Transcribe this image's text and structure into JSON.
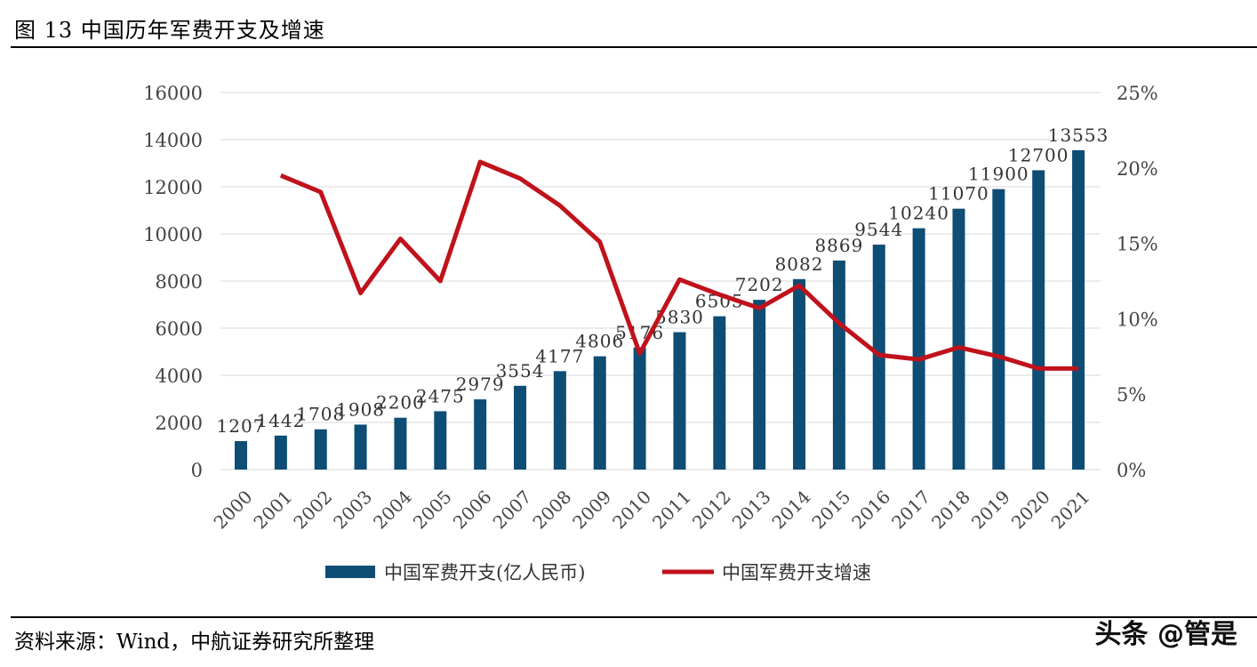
{
  "title": "图 13 中国历年军费开支及增速",
  "source": "资料来源：Wind，中航证券研究所整理",
  "watermark": "头条 @管是",
  "chart_data": {
    "type": "bar+line",
    "categories": [
      "2000",
      "2001",
      "2002",
      "2003",
      "2004",
      "2005",
      "2006",
      "2007",
      "2008",
      "2009",
      "2010",
      "2011",
      "2012",
      "2013",
      "2014",
      "2015",
      "2016",
      "2017",
      "2018",
      "2019",
      "2020",
      "2021"
    ],
    "series": [
      {
        "name": "中国军费开支(亿人民币)",
        "type": "bar",
        "axis": "left",
        "color": "#0e4d74",
        "values": [
          1207,
          1442,
          1708,
          1908,
          2200,
          2475,
          2979,
          3554,
          4177,
          4806,
          5176,
          5830,
          6505,
          7202,
          8082,
          8869,
          9544,
          10240,
          11070,
          11900,
          12700,
          13553
        ]
      },
      {
        "name": "中国军费开支增速",
        "type": "line",
        "axis": "right",
        "color": "#c0121c",
        "values": [
          null,
          19.5,
          18.4,
          11.7,
          15.3,
          12.5,
          20.4,
          19.3,
          17.5,
          15.1,
          7.7,
          12.6,
          11.6,
          10.7,
          12.2,
          9.7,
          7.6,
          7.3,
          8.1,
          7.5,
          6.7,
          6.7
        ]
      }
    ],
    "left_axis": {
      "ylim": [
        0,
        16000
      ],
      "ticks": [
        "0",
        "2000",
        "4000",
        "6000",
        "8000",
        "10000",
        "12000",
        "14000",
        "16000"
      ]
    },
    "right_axis": {
      "ylim": [
        0,
        25
      ],
      "ticks": [
        "0%",
        "5%",
        "10%",
        "15%",
        "20%",
        "25%"
      ]
    },
    "grid": true,
    "legend": "bottom"
  }
}
